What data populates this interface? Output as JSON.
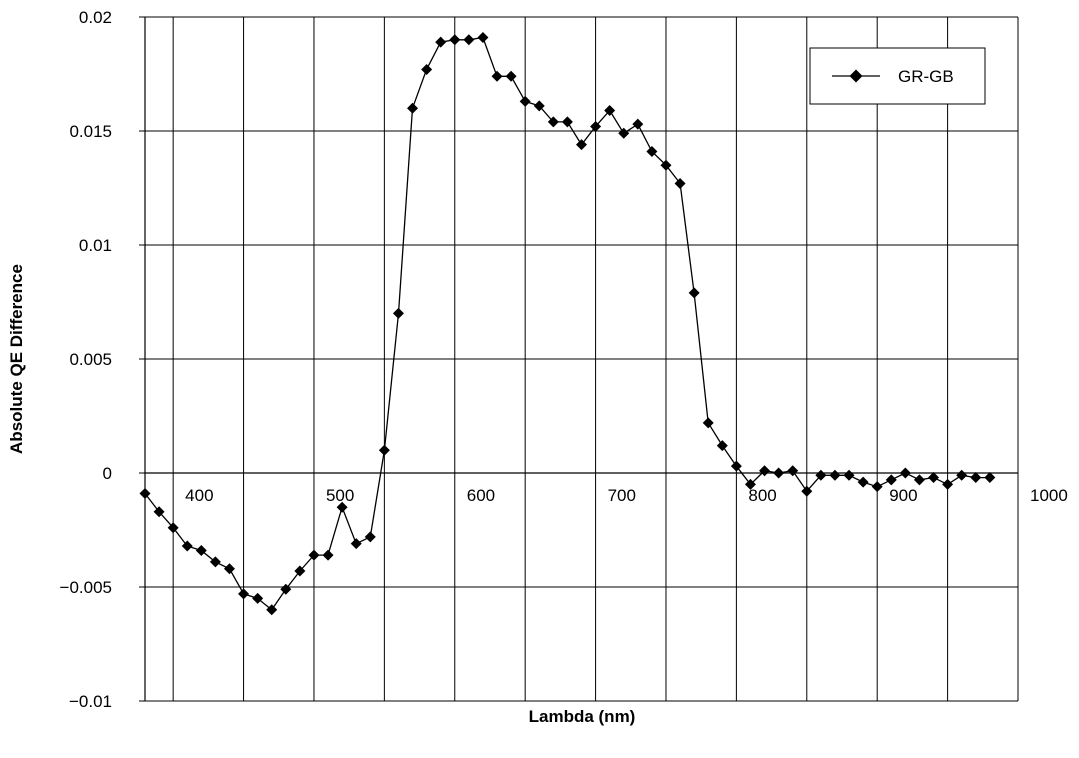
{
  "chart_data": {
    "type": "line",
    "xlabel": "Lambda (nm)",
    "ylabel": "Absolute QE Difference",
    "xlim": [
      380,
      1000
    ],
    "ylim": [
      -0.01,
      0.02
    ],
    "x_ticks": [
      400,
      500,
      600,
      700,
      800,
      900,
      1000
    ],
    "x_tick_labels": [
      "400",
      "500",
      "600",
      "700",
      "800",
      "900",
      "1000"
    ],
    "y_ticks": [
      -0.01,
      -0.005,
      0,
      0.005,
      0.01,
      0.015,
      0.02
    ],
    "y_tick_labels": [
      "−0.01",
      "−0.005",
      "0",
      "0.005",
      "0.01",
      "0.015",
      "0.02"
    ],
    "grid": true,
    "legend_position": "top-right",
    "series": [
      {
        "name": "GR-GB",
        "color": "#000000",
        "marker": "diamond",
        "x": [
          380,
          390,
          400,
          410,
          420,
          430,
          440,
          450,
          460,
          470,
          480,
          490,
          500,
          510,
          520,
          530,
          540,
          550,
          560,
          570,
          580,
          590,
          600,
          610,
          620,
          630,
          640,
          650,
          660,
          670,
          680,
          690,
          700,
          710,
          720,
          730,
          740,
          750,
          760,
          770,
          780,
          790,
          800,
          810,
          820,
          830,
          840,
          850,
          860,
          870,
          880,
          890,
          900,
          910,
          920,
          930,
          940,
          950,
          960,
          970,
          980
        ],
        "y": [
          -0.0009,
          -0.0017,
          -0.0024,
          -0.0032,
          -0.0034,
          -0.0039,
          -0.0042,
          -0.0053,
          -0.0055,
          -0.006,
          -0.0051,
          -0.0043,
          -0.0036,
          -0.0036,
          -0.0015,
          -0.0031,
          -0.0028,
          0.001,
          0.007,
          0.016,
          0.0177,
          0.0189,
          0.019,
          0.019,
          0.0191,
          0.0174,
          0.0174,
          0.0163,
          0.0161,
          0.0154,
          0.0154,
          0.0144,
          0.0152,
          0.0159,
          0.0149,
          0.0153,
          0.0141,
          0.0135,
          0.0127,
          0.0079,
          0.0022,
          0.0012,
          0.0003,
          -0.0005,
          0.0001,
          0.0,
          0.0001,
          -0.0008,
          -0.0001,
          -0.0001,
          -0.0001,
          -0.0004,
          -0.0006,
          -0.0003,
          0.0,
          -0.0003,
          -0.0002,
          -0.0005,
          -0.0001,
          -0.0002,
          -0.0002
        ]
      }
    ]
  }
}
